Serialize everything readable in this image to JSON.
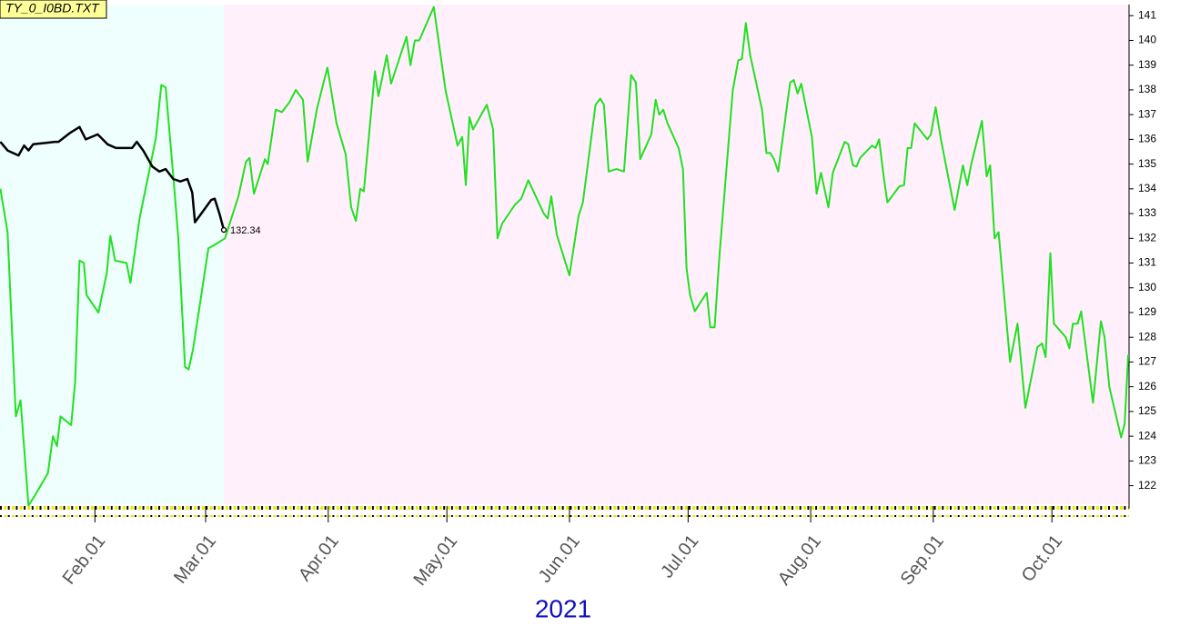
{
  "chart_data": {
    "type": "line",
    "title": "TY_0_I0BD.TXT",
    "xlabel": "2021",
    "annotation": "132.34",
    "xlim": [
      7,
      292.5
    ],
    "ylim": [
      121.25,
      141.45
    ],
    "xticks": [
      {
        "value": 31,
        "label": "Feb.01"
      },
      {
        "value": 59,
        "label": "Mar.01"
      },
      {
        "value": 90,
        "label": "Apr.01"
      },
      {
        "value": 120,
        "label": "May.01"
      },
      {
        "value": 151,
        "label": "Jun.01"
      },
      {
        "value": 181,
        "label": "Jul.01"
      },
      {
        "value": 212,
        "label": "Aug.01"
      },
      {
        "value": 243,
        "label": "Sep.01"
      },
      {
        "value": 273,
        "label": "Oct.01"
      }
    ],
    "yticks": [
      122,
      123,
      124,
      125,
      126,
      127,
      128,
      129,
      130,
      131,
      132,
      133,
      134,
      135,
      136,
      137,
      138,
      139,
      140,
      141
    ],
    "series": [
      {
        "color": "#22e022",
        "x": [
          7.1,
          8.9,
          11.0,
          12.2,
          14.2,
          15.8,
          19.1,
          20.4,
          21.4,
          22.3,
          25.0,
          26.0,
          27.1,
          28.2,
          28.9,
          31.9,
          34.0,
          34.9,
          36.1,
          39.0,
          40.0,
          42.3,
          46.4,
          47.8,
          48.9,
          51.0,
          52.1,
          53.8,
          54.7,
          55.8,
          57.0,
          59.7,
          60.9,
          63.9,
          67.3,
          69.2,
          70.1,
          71.2,
          74.0,
          74.7,
          76.7,
          78.3,
          80.2,
          81.8,
          83.6,
          84.8,
          87.1,
          88.5,
          89.8,
          92.1,
          94.4,
          95.8,
          97.0,
          98.1,
          99.0,
          101.8,
          102.7,
          104.8,
          105.9,
          109.8,
          110.8,
          111.9,
          113.0,
          116.7,
          119.7,
          122.7,
          123.9,
          124.8,
          125.7,
          126.6,
          130.1,
          131.7,
          132.8,
          134.0,
          137.2,
          138.8,
          140.6,
          144.5,
          145.5,
          146.4,
          147.8,
          151.0,
          153.3,
          154.4,
          157.6,
          158.8,
          159.7,
          160.9,
          162.9,
          164.8,
          166.6,
          167.8,
          168.9,
          171.7,
          172.8,
          173.7,
          174.7,
          175.8,
          178.6,
          179.7,
          180.6,
          181.5,
          182.7,
          185.7,
          186.6,
          187.7,
          188.9,
          192.3,
          193.7,
          194.6,
          195.6,
          196.7,
          199.7,
          200.8,
          201.8,
          202.7,
          203.8,
          206.8,
          207.7,
          208.7,
          209.6,
          212.3,
          213.5,
          214.6,
          216.5,
          217.6,
          220.6,
          221.5,
          222.7,
          223.6,
          224.5,
          227.5,
          228.4,
          229.3,
          230.5,
          231.4,
          234.4,
          235.6,
          236.5,
          237.4,
          238.3,
          241.5,
          242.4,
          243.6,
          245.0,
          248.4,
          250.5,
          251.6,
          252.6,
          255.3,
          256.5,
          257.4,
          258.5,
          259.5,
          262.4,
          264.3,
          266.3,
          269.3,
          270.5,
          271.4,
          272.6,
          273.5,
          276.5,
          277.4,
          278.3,
          279.5,
          280.4,
          283.4,
          285.4,
          286.3,
          287.5,
          290.5,
          291.4,
          292.3
        ],
        "values": [
          134.0,
          132.25,
          124.8,
          125.45,
          121.2,
          121.6,
          122.5,
          124.0,
          123.6,
          124.8,
          124.45,
          126.2,
          131.1,
          131.0,
          129.7,
          129.0,
          130.6,
          132.1,
          131.1,
          131.0,
          130.2,
          132.8,
          136.05,
          138.2,
          138.1,
          134.15,
          132.0,
          126.8,
          126.7,
          127.5,
          128.75,
          131.6,
          131.7,
          132.0,
          133.7,
          135.1,
          135.25,
          133.8,
          135.2,
          135.0,
          137.2,
          137.1,
          137.5,
          138.0,
          137.6,
          135.1,
          137.2,
          138.1,
          138.9,
          136.65,
          135.4,
          133.25,
          132.7,
          134.0,
          133.9,
          138.75,
          137.75,
          139.4,
          138.25,
          140.15,
          139.0,
          140.0,
          140.0,
          141.35,
          137.95,
          135.75,
          136.1,
          134.15,
          136.9,
          136.4,
          137.4,
          136.4,
          132.0,
          132.6,
          133.35,
          133.6,
          134.35,
          133.0,
          132.8,
          133.7,
          132.15,
          130.5,
          132.9,
          133.45,
          137.4,
          137.65,
          137.4,
          134.7,
          134.8,
          134.7,
          138.6,
          138.3,
          135.2,
          136.2,
          137.6,
          137.0,
          137.2,
          136.65,
          135.65,
          134.8,
          130.8,
          129.7,
          129.05,
          129.8,
          128.4,
          128.4,
          131.25,
          138.0,
          139.2,
          139.25,
          140.7,
          139.4,
          137.2,
          135.45,
          135.45,
          135.2,
          134.7,
          138.3,
          138.4,
          137.85,
          138.25,
          136.1,
          133.8,
          134.65,
          133.25,
          134.65,
          135.9,
          135.8,
          134.95,
          134.9,
          135.25,
          135.75,
          135.65,
          136.0,
          134.45,
          133.45,
          134.1,
          134.15,
          135.65,
          135.65,
          136.65,
          136.0,
          136.2,
          137.3,
          135.95,
          133.15,
          134.95,
          134.15,
          135.0,
          136.75,
          134.5,
          134.95,
          132.0,
          132.25,
          127.0,
          128.55,
          125.15,
          127.6,
          127.75,
          127.2,
          131.4,
          128.55,
          128.0,
          127.55,
          128.55,
          128.55,
          129.05,
          125.35,
          128.65,
          128.0,
          126.0,
          123.95,
          124.5,
          127.3
        ]
      },
      {
        "color": "#000000",
        "x": [
          7.1,
          8.9,
          11.7,
          13.1,
          14.2,
          15.4,
          18.1,
          20.9,
          21.8,
          24.6,
          27.1,
          28.7,
          31.7,
          34.2,
          36.3,
          40.4,
          41.6,
          43.2,
          45.5,
          47.3,
          48.9,
          50.8,
          52.6,
          54.4,
          55.6,
          56.3,
          60.4,
          61.3,
          62.5,
          63.6
        ],
        "values": [
          135.9,
          135.55,
          135.35,
          135.75,
          135.55,
          135.8,
          135.85,
          135.9,
          135.9,
          136.25,
          136.5,
          136.0,
          136.2,
          135.8,
          135.65,
          135.65,
          135.9,
          135.55,
          134.9,
          134.7,
          134.8,
          134.4,
          134.3,
          134.4,
          133.85,
          132.65,
          133.55,
          133.6,
          133.0,
          132.34
        ]
      }
    ]
  }
}
